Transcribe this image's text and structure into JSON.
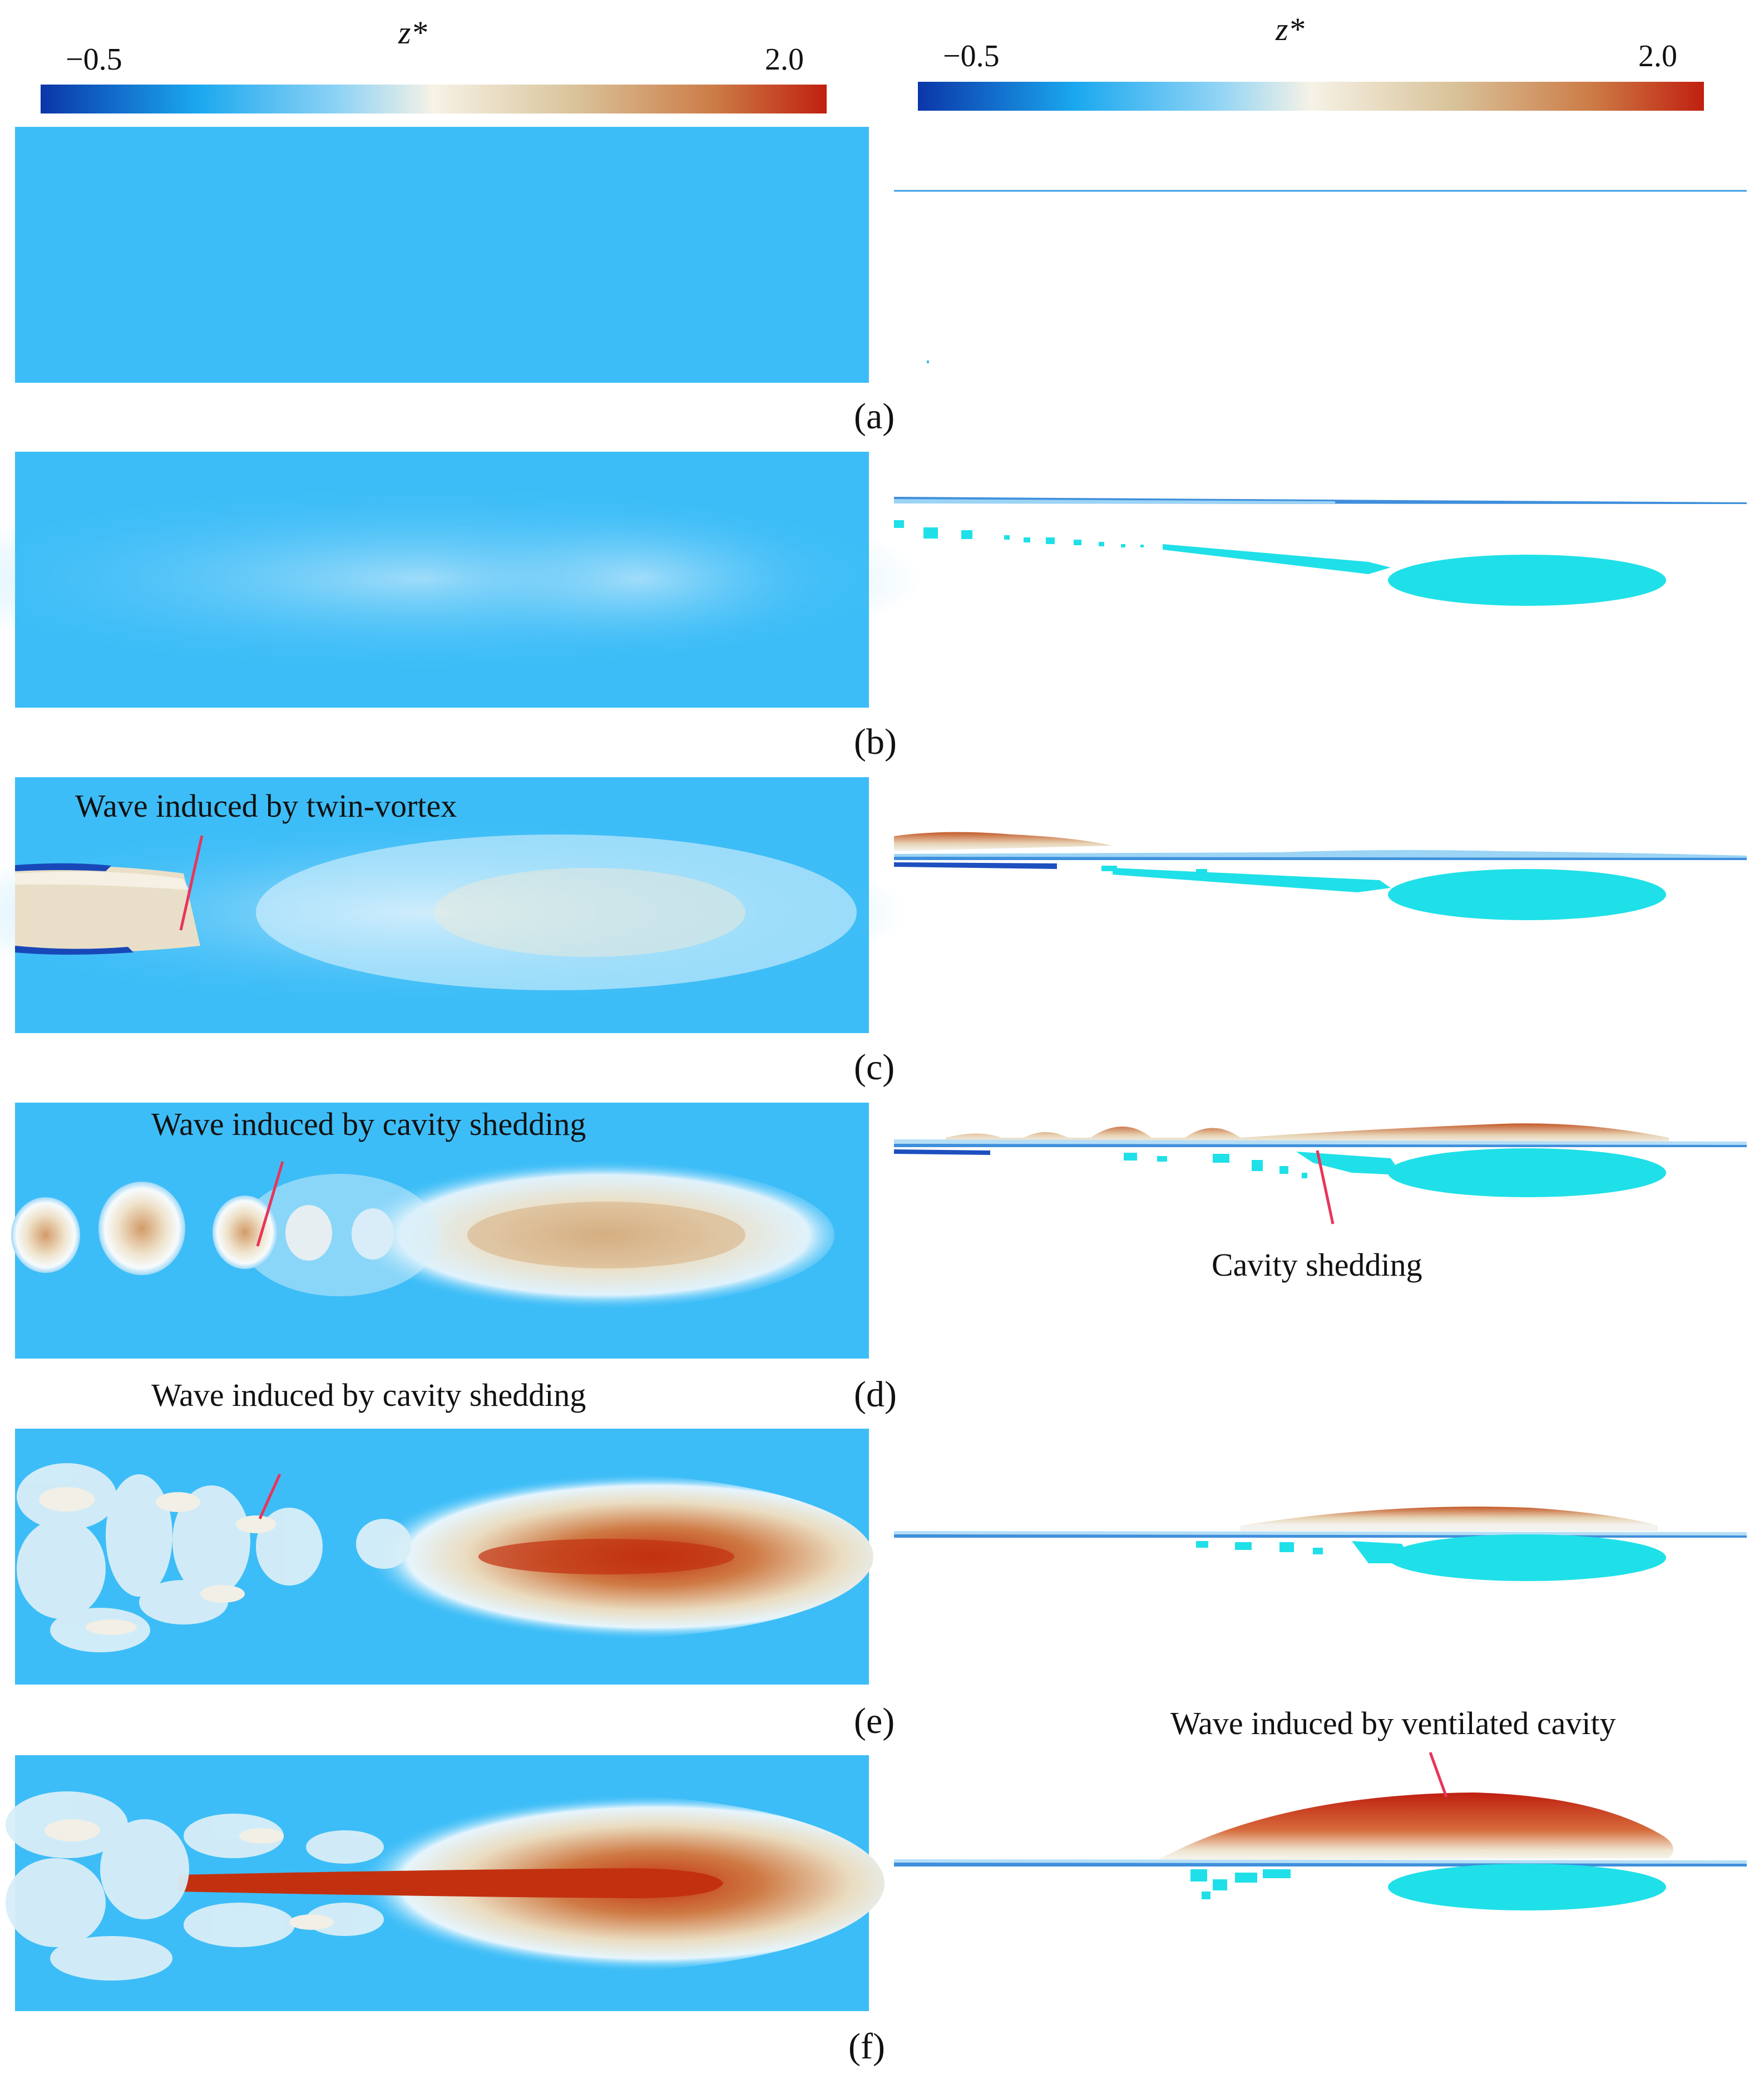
{
  "colorbar": {
    "variable": "z*",
    "min_label": "−0.5",
    "max_label": "2.0",
    "min": -0.5,
    "max": 2.0,
    "colors": [
      "#0b36a8",
      "#1aa8ef",
      "#8fd3f5",
      "#f6f2e6",
      "#d9c39a",
      "#cc7a45",
      "#c0200f"
    ]
  },
  "colors": {
    "background_water": "#3dbdf7",
    "cavity": "#1fe0e8",
    "annotation_line": "#e8355a",
    "text": "#111111"
  },
  "panels": [
    {
      "label": "(a)",
      "annotation_left": "",
      "annotation_right": ""
    },
    {
      "label": "(b)",
      "annotation_left": "",
      "annotation_right": ""
    },
    {
      "label": "(c)",
      "annotation_left": "Wave induced by twin-vortex",
      "annotation_right": ""
    },
    {
      "label": "(d)",
      "annotation_left": "Wave induced by cavity shedding",
      "annotation_right": "Cavity shedding"
    },
    {
      "label": "(e)",
      "annotation_left": "Wave induced by cavity shedding",
      "annotation_right": ""
    },
    {
      "label": "(f)",
      "annotation_left": "",
      "annotation_right": "Wave induced by ventilated cavity"
    }
  ]
}
